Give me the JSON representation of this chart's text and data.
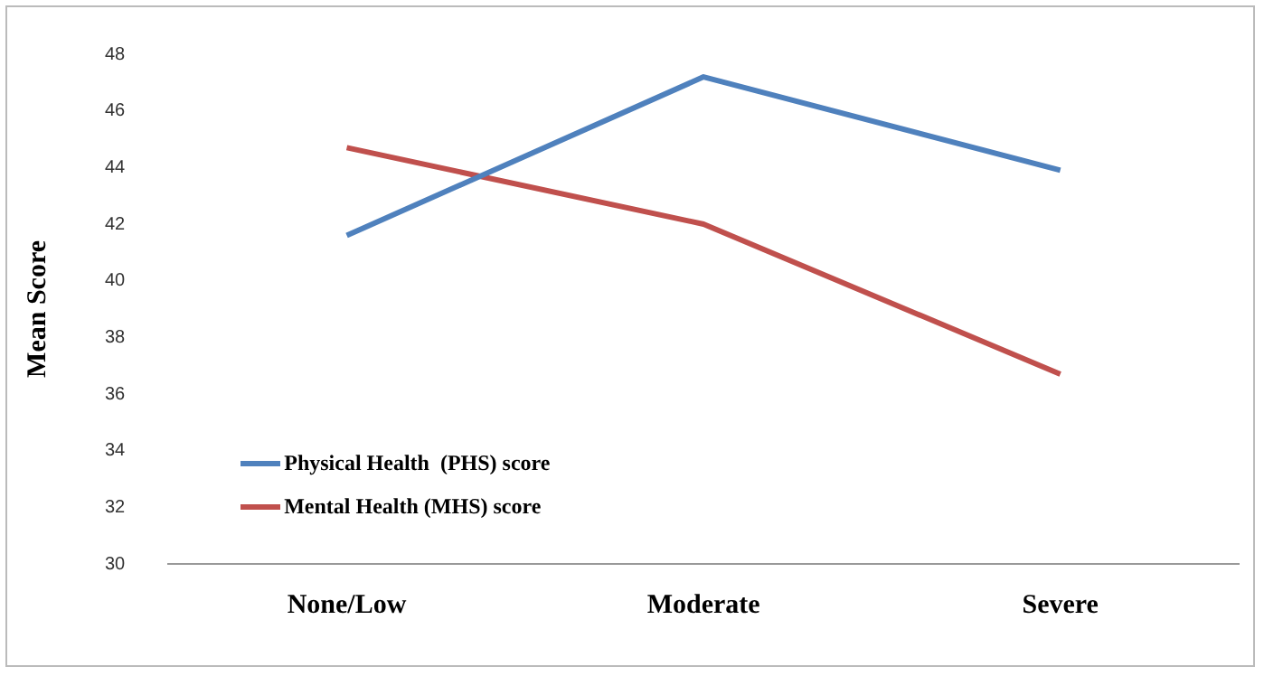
{
  "chart_data": {
    "type": "line",
    "ylabel": "Mean Score",
    "categories": [
      "None/Low",
      "Moderate",
      "Severe"
    ],
    "series": [
      {
        "name": "Physical Health  (PHS) score",
        "color": "#4f81bd",
        "values": [
          41.6,
          47.2,
          43.9
        ]
      },
      {
        "name": "Mental Health (MHS) score",
        "color": "#c0504d",
        "values": [
          44.7,
          42.0,
          36.7
        ]
      }
    ],
    "ylim": [
      30,
      48
    ],
    "yticks": [
      30,
      32,
      34,
      36,
      38,
      40,
      42,
      44,
      46,
      48
    ],
    "grid": false,
    "legend": "bottom left",
    "marker": "none",
    "line_style": "solid"
  }
}
